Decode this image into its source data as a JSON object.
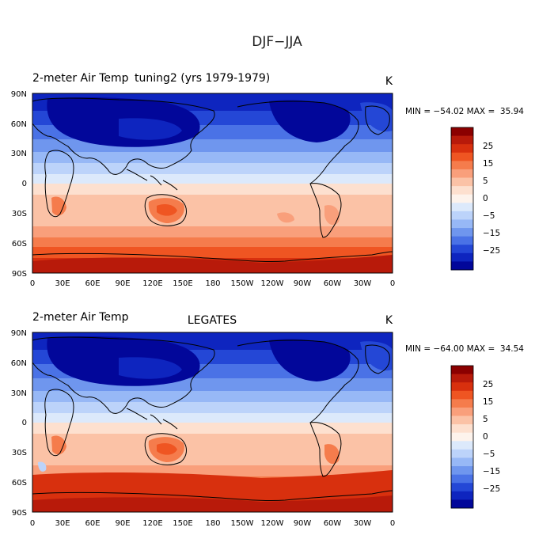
{
  "main_title": "DJF−JJA",
  "panels": [
    {
      "variable": "2-meter Air Temp",
      "case": "tuning2 (yrs 1979-1979)",
      "units": "K",
      "stats": "MIN = −54.02 MAX =  35.94"
    },
    {
      "variable": "2-meter Air Temp",
      "case": "LEGATES",
      "units": "K",
      "stats": "MIN = −64.00 MAX =  34.54"
    }
  ],
  "lat_ticks": [
    "90N",
    "60N",
    "30N",
    "0",
    "30S",
    "60S",
    "90S"
  ],
  "lon_ticks": [
    "0",
    "30E",
    "60E",
    "90E",
    "120E",
    "150E",
    "180",
    "150W",
    "120W",
    "90W",
    "60W",
    "30W",
    "0"
  ],
  "colorbar": {
    "labels": [
      "25",
      "15",
      "5",
      "0",
      "−5",
      "−15",
      "−25"
    ],
    "colors": [
      "#8b0000",
      "#b81a0a",
      "#d8300e",
      "#ef5522",
      "#f57c4c",
      "#f99f7b",
      "#fbc2a6",
      "#fde0cf",
      "#fdf3ec",
      "#dce9fb",
      "#bcd3fa",
      "#97b8f6",
      "#6f96ee",
      "#4a72e6",
      "#2447d6",
      "#0e25bf",
      "#02079a"
    ]
  }
}
